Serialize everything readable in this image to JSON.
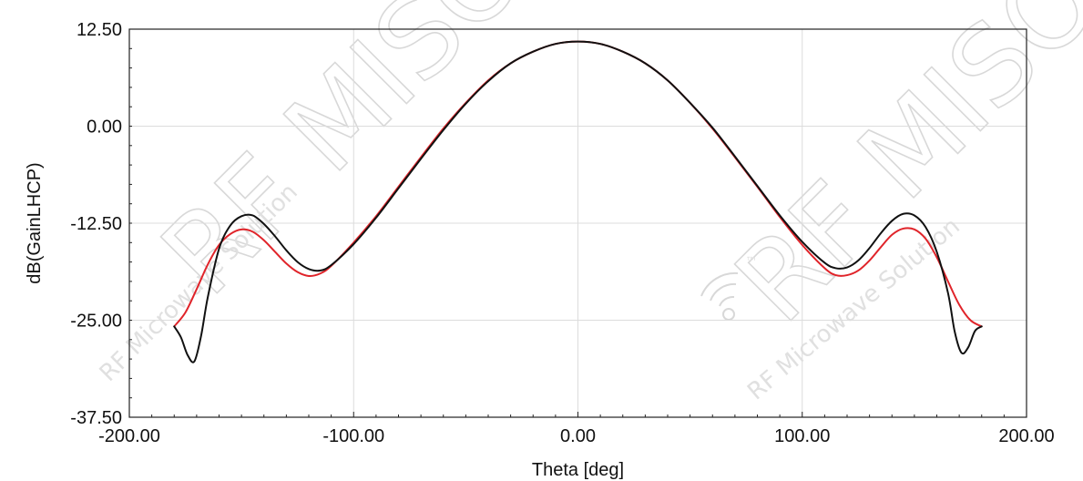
{
  "chart_data": {
    "type": "line",
    "title": "",
    "xlabel": "Theta [deg]",
    "ylabel": "dB(GainLHCP)",
    "xlim": [
      -200,
      200
    ],
    "ylim": [
      -37.5,
      12.5
    ],
    "xticks": [
      -200,
      -100,
      0,
      100,
      200
    ],
    "yticks": [
      -37.5,
      -25,
      -12.5,
      0,
      12.5
    ],
    "xtick_labels": [
      "-200.00",
      "-100.00",
      "0.00",
      "100.00",
      "200.00"
    ],
    "ytick_labels": [
      "-37.50",
      "-25.00",
      "-12.50",
      "0.00",
      "12.50"
    ],
    "grid": true,
    "legend": "none",
    "series": [
      {
        "color": "#e0242a",
        "x": [
          -180,
          -175,
          -170,
          -165,
          -160,
          -155,
          -150,
          -145,
          -140,
          -135,
          -130,
          -125,
          -120,
          -115,
          -110,
          -100,
          -90,
          -80,
          -70,
          -60,
          -50,
          -40,
          -30,
          -20,
          -10,
          0,
          10,
          20,
          30,
          40,
          50,
          60,
          70,
          80,
          90,
          100,
          110,
          115,
          120,
          125,
          130,
          135,
          140,
          145,
          150,
          155,
          160,
          165,
          170,
          175,
          180
        ],
        "y": [
          -25.8,
          -24.0,
          -21.0,
          -17.8,
          -15.3,
          -13.9,
          -13.3,
          -13.6,
          -14.7,
          -16.2,
          -17.7,
          -18.8,
          -19.3,
          -19.0,
          -18.0,
          -15.0,
          -11.6,
          -7.8,
          -4.0,
          -0.3,
          3.0,
          5.9,
          8.1,
          9.6,
          10.6,
          10.9,
          10.6,
          9.6,
          8.1,
          5.9,
          3.0,
          -0.3,
          -4.0,
          -7.8,
          -11.7,
          -15.3,
          -18.3,
          -19.2,
          -19.2,
          -18.6,
          -17.3,
          -15.6,
          -14.0,
          -13.2,
          -13.3,
          -14.5,
          -16.9,
          -20.0,
          -23.0,
          -25.0,
          -25.8
        ]
      },
      {
        "color": "#111111",
        "x": [
          -180,
          -177,
          -174,
          -171,
          -168,
          -165,
          -160,
          -155,
          -150,
          -145,
          -140,
          -135,
          -130,
          -125,
          -120,
          -115,
          -110,
          -100,
          -90,
          -80,
          -70,
          -60,
          -50,
          -40,
          -30,
          -20,
          -10,
          0,
          10,
          20,
          30,
          40,
          50,
          60,
          70,
          80,
          90,
          100,
          110,
          115,
          120,
          125,
          130,
          135,
          140,
          145,
          150,
          155,
          160,
          165,
          168,
          171,
          174,
          177,
          180
        ],
        "y": [
          -25.8,
          -27.2,
          -29.5,
          -30.3,
          -27.0,
          -22.0,
          -15.8,
          -12.8,
          -11.6,
          -11.5,
          -12.6,
          -14.2,
          -16.0,
          -17.5,
          -18.4,
          -18.6,
          -17.9,
          -15.2,
          -11.8,
          -8.0,
          -4.2,
          -0.5,
          2.9,
          5.8,
          8.1,
          9.6,
          10.6,
          10.9,
          10.6,
          9.6,
          8.1,
          5.9,
          3.0,
          -0.2,
          -3.9,
          -7.7,
          -11.5,
          -14.9,
          -17.6,
          -18.3,
          -18.2,
          -17.3,
          -15.7,
          -13.8,
          -12.2,
          -11.3,
          -11.5,
          -13.0,
          -16.2,
          -21.5,
          -26.5,
          -29.2,
          -28.5,
          -26.4,
          -25.8
        ]
      }
    ]
  },
  "watermark": {
    "brand": "RF MISO",
    "tagline": "RF Microwave Solution",
    "tm": "™"
  }
}
